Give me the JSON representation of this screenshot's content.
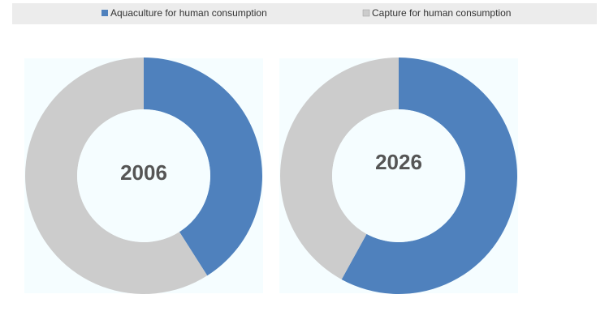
{
  "chart_data": {
    "type": "donut",
    "categories": [
      "2006",
      "2026"
    ],
    "series": [
      {
        "name": "Aquaculture for human consumption",
        "color": "#4f81bd",
        "values": [
          41,
          58
        ]
      },
      {
        "name": "Capture for human consumption",
        "color": "#cccccc",
        "values": [
          59,
          42
        ]
      }
    ]
  }
}
